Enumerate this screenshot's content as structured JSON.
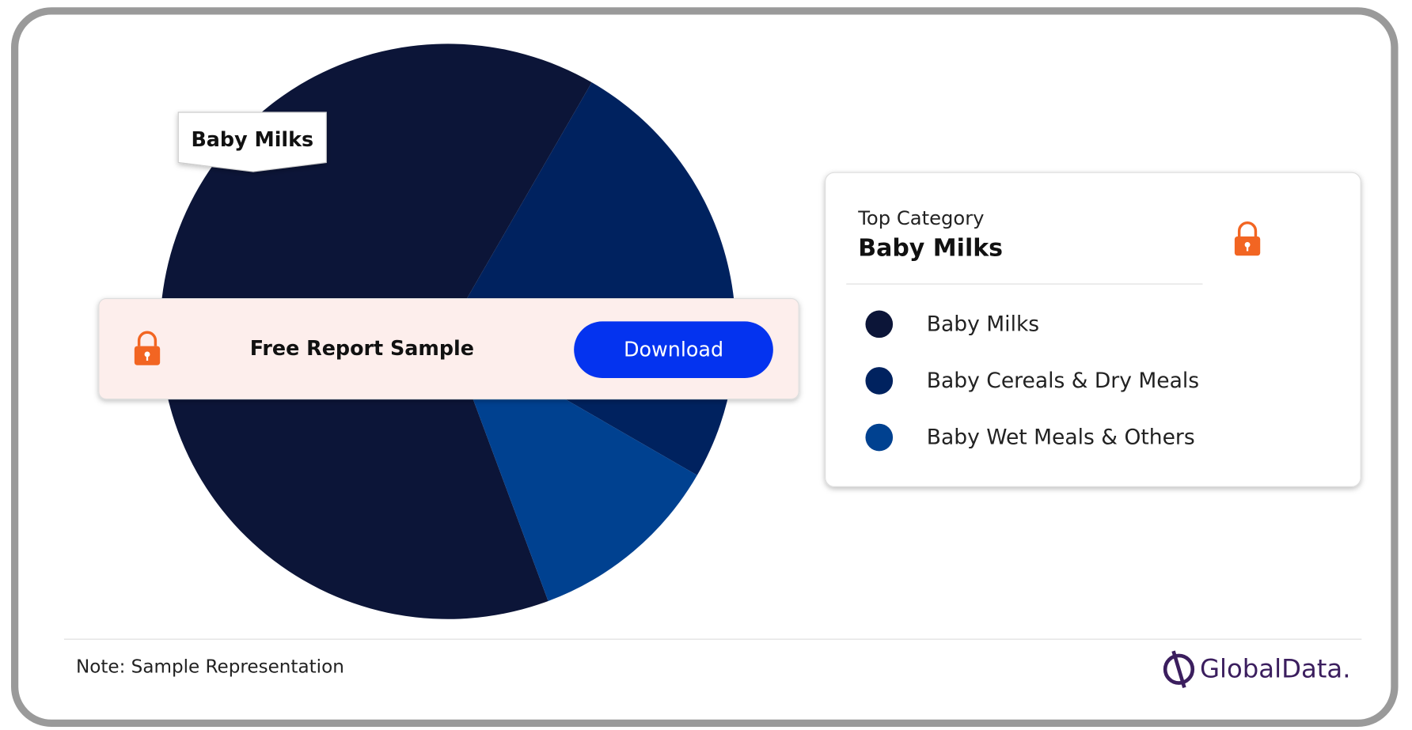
{
  "chart_data": {
    "type": "pie",
    "categories": [
      "Baby Milks",
      "Baby Cereals & Dry Meals",
      "Baby Wet Meals & Others"
    ],
    "values": [
      64,
      25,
      11
    ],
    "colors": [
      "#0c1538",
      "#00225f",
      "#004190"
    ]
  },
  "top_category": {
    "heading": "Top Category",
    "name": "Baby Milks"
  },
  "banner": {
    "text": "Free Report Sample",
    "button": "Download"
  },
  "footer": {
    "note": "Note: Sample Representation",
    "brand": "GlobalData."
  }
}
